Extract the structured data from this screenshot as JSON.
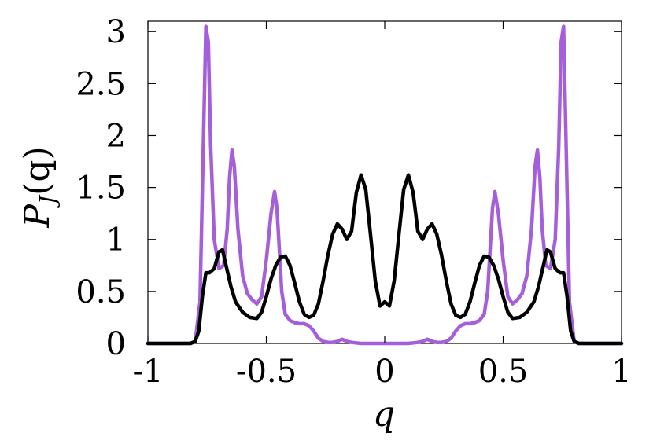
{
  "chart_data": {
    "type": "line",
    "title": "",
    "xlabel": "q",
    "ylabel": "P_J(q)",
    "ylabel_parts": {
      "main": "P",
      "sub": "J",
      "paren": "(q)"
    },
    "xlim": [
      -1,
      1
    ],
    "ylim": [
      0,
      3.1
    ],
    "xticks": [
      -1,
      -0.5,
      0,
      0.5,
      1
    ],
    "xtick_labels": [
      "-1",
      "-0.5",
      "0",
      "0.5",
      "1"
    ],
    "yticks": [
      0,
      0.5,
      1,
      1.5,
      2,
      2.5,
      3
    ],
    "ytick_labels": [
      "0",
      "0.5",
      "1",
      "1.5",
      "2",
      "2.5",
      "3"
    ],
    "grid": false,
    "legend": "none",
    "series": [
      {
        "color": "#a65fdb",
        "x": [
          -1,
          -0.82,
          -0.8,
          -0.78,
          -0.765,
          -0.755,
          -0.745,
          -0.735,
          -0.72,
          -0.7,
          -0.68,
          -0.665,
          -0.655,
          -0.645,
          -0.635,
          -0.62,
          -0.6,
          -0.58,
          -0.56,
          -0.54,
          -0.52,
          -0.5,
          -0.48,
          -0.465,
          -0.455,
          -0.445,
          -0.435,
          -0.42,
          -0.4,
          -0.38,
          -0.36,
          -0.34,
          -0.32,
          -0.3,
          -0.28,
          -0.26,
          -0.24,
          -0.22,
          -0.2,
          -0.18,
          -0.16,
          -0.14,
          -0.1,
          -0.05,
          0,
          0.05,
          0.1,
          0.14,
          0.16,
          0.18,
          0.2,
          0.22,
          0.24,
          0.26,
          0.28,
          0.3,
          0.32,
          0.34,
          0.36,
          0.38,
          0.4,
          0.42,
          0.435,
          0.445,
          0.455,
          0.465,
          0.48,
          0.5,
          0.52,
          0.54,
          0.56,
          0.58,
          0.6,
          0.62,
          0.635,
          0.645,
          0.655,
          0.665,
          0.68,
          0.7,
          0.72,
          0.735,
          0.745,
          0.755,
          0.765,
          0.78,
          0.8,
          0.82,
          1
        ],
        "y": [
          0,
          0,
          0.02,
          0.4,
          2.0,
          3.05,
          2.9,
          1.9,
          1.0,
          0.72,
          0.75,
          1.1,
          1.6,
          1.86,
          1.7,
          1.1,
          0.65,
          0.48,
          0.42,
          0.38,
          0.45,
          0.8,
          1.25,
          1.46,
          1.3,
          0.9,
          0.5,
          0.28,
          0.22,
          0.2,
          0.19,
          0.19,
          0.17,
          0.12,
          0.05,
          0.02,
          0.01,
          0.01,
          0.02,
          0.04,
          0.02,
          0.01,
          0.0,
          0.0,
          0.0,
          0.0,
          0.0,
          0.01,
          0.02,
          0.04,
          0.02,
          0.01,
          0.01,
          0.02,
          0.05,
          0.12,
          0.17,
          0.19,
          0.19,
          0.2,
          0.22,
          0.28,
          0.5,
          0.9,
          1.3,
          1.46,
          1.25,
          0.8,
          0.45,
          0.38,
          0.42,
          0.48,
          0.65,
          1.1,
          1.7,
          1.86,
          1.6,
          1.1,
          0.75,
          0.72,
          1.0,
          1.9,
          2.9,
          3.05,
          2.0,
          0.4,
          0.02,
          0,
          0
        ]
      },
      {
        "color": "#000000",
        "x": [
          -1,
          -0.82,
          -0.8,
          -0.785,
          -0.77,
          -0.755,
          -0.74,
          -0.72,
          -0.7,
          -0.685,
          -0.67,
          -0.65,
          -0.63,
          -0.6,
          -0.57,
          -0.54,
          -0.52,
          -0.5,
          -0.48,
          -0.46,
          -0.44,
          -0.42,
          -0.4,
          -0.38,
          -0.36,
          -0.34,
          -0.32,
          -0.3,
          -0.28,
          -0.26,
          -0.24,
          -0.22,
          -0.2,
          -0.18,
          -0.16,
          -0.14,
          -0.12,
          -0.1,
          -0.08,
          -0.06,
          -0.04,
          -0.02,
          0,
          0.02,
          0.04,
          0.06,
          0.08,
          0.1,
          0.12,
          0.14,
          0.16,
          0.18,
          0.2,
          0.22,
          0.24,
          0.26,
          0.28,
          0.3,
          0.32,
          0.34,
          0.36,
          0.38,
          0.4,
          0.42,
          0.44,
          0.46,
          0.48,
          0.5,
          0.52,
          0.54,
          0.57,
          0.6,
          0.63,
          0.65,
          0.67,
          0.685,
          0.7,
          0.72,
          0.74,
          0.755,
          0.77,
          0.785,
          0.8,
          0.82,
          1
        ],
        "y": [
          0,
          0,
          0.02,
          0.12,
          0.45,
          0.68,
          0.68,
          0.72,
          0.88,
          0.9,
          0.75,
          0.55,
          0.4,
          0.3,
          0.25,
          0.24,
          0.3,
          0.45,
          0.62,
          0.75,
          0.83,
          0.84,
          0.75,
          0.58,
          0.4,
          0.28,
          0.25,
          0.27,
          0.38,
          0.6,
          0.85,
          1.05,
          1.15,
          1.1,
          1.0,
          1.08,
          1.45,
          1.62,
          1.48,
          1.05,
          0.6,
          0.36,
          0.4,
          0.36,
          0.6,
          1.05,
          1.48,
          1.62,
          1.45,
          1.08,
          1.0,
          1.1,
          1.15,
          1.05,
          0.85,
          0.6,
          0.38,
          0.27,
          0.25,
          0.28,
          0.4,
          0.58,
          0.75,
          0.84,
          0.83,
          0.75,
          0.62,
          0.45,
          0.3,
          0.24,
          0.25,
          0.3,
          0.4,
          0.55,
          0.75,
          0.9,
          0.88,
          0.72,
          0.68,
          0.68,
          0.45,
          0.12,
          0.02,
          0,
          0
        ]
      }
    ]
  }
}
